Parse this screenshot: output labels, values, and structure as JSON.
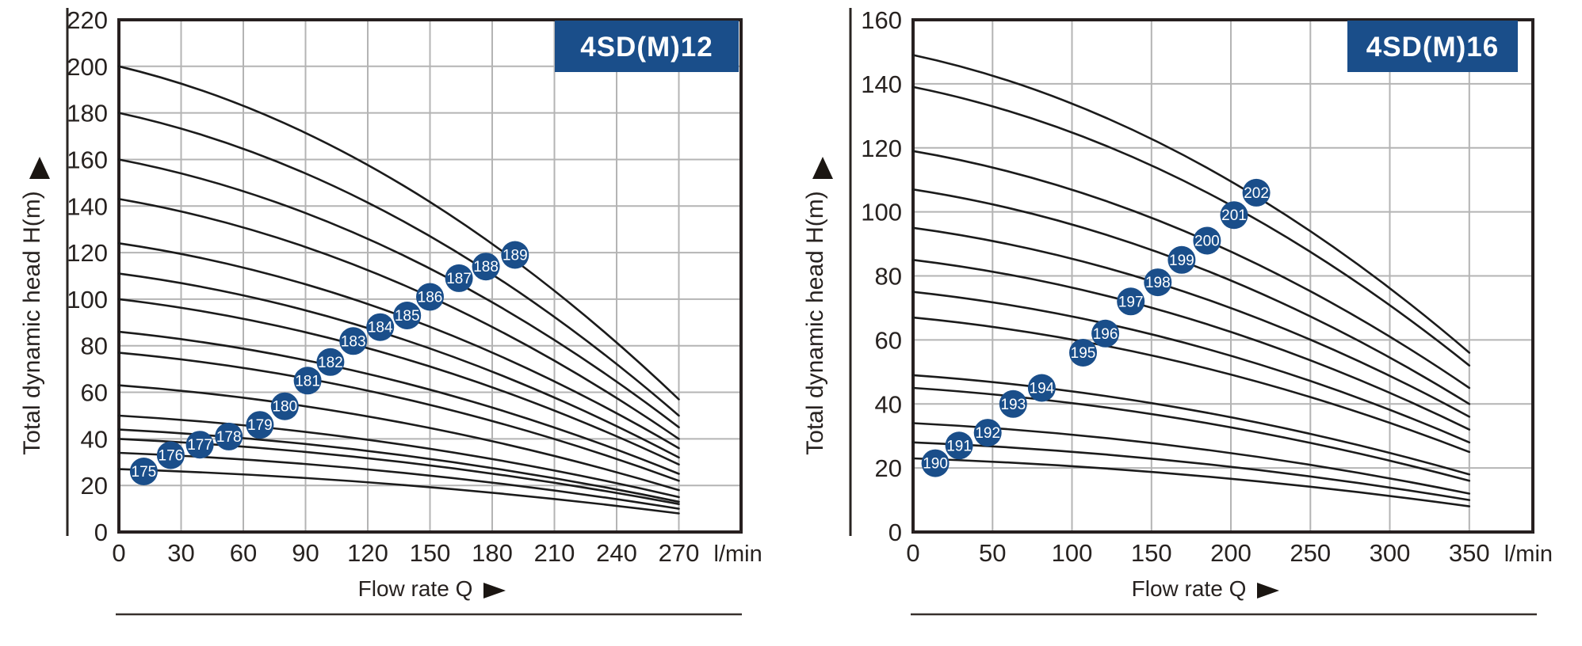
{
  "colors": {
    "accent": "#1a4e8a",
    "curve": "#1b1b1b",
    "grid": "#b4b4b4",
    "border": "#272020",
    "rule": "#2a2522",
    "marker_text": "#ffffff"
  },
  "chart_data": [
    {
      "type": "line",
      "title": "4SD(M)12",
      "ylabel": "Total dynamic head H(m)",
      "xlabel": "Flow rate Q",
      "x_unit": "l/min",
      "xlim": [
        0,
        300
      ],
      "ylim": [
        0,
        220
      ],
      "x_ticks": [
        0,
        30,
        60,
        90,
        120,
        150,
        180,
        210,
        240,
        270
      ],
      "y_ticks": [
        0,
        20,
        40,
        60,
        80,
        100,
        120,
        140,
        160,
        180,
        200,
        220
      ],
      "grid": true,
      "q_end": 270,
      "series": [
        {
          "name": "175",
          "h_at_q0": 27,
          "h_at_qend": 8
        },
        {
          "name": "176",
          "h_at_q0": 34,
          "h_at_qend": 10
        },
        {
          "name": "177",
          "h_at_q0": 40,
          "h_at_qend": 12
        },
        {
          "name": "178",
          "h_at_q0": 44,
          "h_at_qend": 13
        },
        {
          "name": "179",
          "h_at_q0": 50,
          "h_at_qend": 15
        },
        {
          "name": "180",
          "h_at_q0": 63,
          "h_at_qend": 18
        },
        {
          "name": "181",
          "h_at_q0": 77,
          "h_at_qend": 22
        },
        {
          "name": "182",
          "h_at_q0": 86,
          "h_at_qend": 25
        },
        {
          "name": "183",
          "h_at_q0": 100,
          "h_at_qend": 29
        },
        {
          "name": "184",
          "h_at_q0": 111,
          "h_at_qend": 32
        },
        {
          "name": "185",
          "h_at_q0": 124,
          "h_at_qend": 36
        },
        {
          "name": "186",
          "h_at_q0": 143,
          "h_at_qend": 40
        },
        {
          "name": "187",
          "h_at_q0": 160,
          "h_at_qend": 45
        },
        {
          "name": "188",
          "h_at_q0": 180,
          "h_at_qend": 50
        },
        {
          "name": "189",
          "h_at_q0": 200,
          "h_at_qend": 57
        }
      ],
      "duty_points": [
        {
          "label": "175",
          "q": 12,
          "h": 26
        },
        {
          "label": "176",
          "q": 25,
          "h": 33
        },
        {
          "label": "177",
          "q": 39,
          "h": 37.5
        },
        {
          "label": "178",
          "q": 53,
          "h": 41
        },
        {
          "label": "179",
          "q": 68,
          "h": 46
        },
        {
          "label": "180",
          "q": 80,
          "h": 54
        },
        {
          "label": "181",
          "q": 91,
          "h": 65
        },
        {
          "label": "182",
          "q": 102,
          "h": 73
        },
        {
          "label": "183",
          "q": 113,
          "h": 82
        },
        {
          "label": "184",
          "q": 126,
          "h": 88
        },
        {
          "label": "185",
          "q": 139,
          "h": 93
        },
        {
          "label": "186",
          "q": 150,
          "h": 101
        },
        {
          "label": "187",
          "q": 164,
          "h": 109
        },
        {
          "label": "188",
          "q": 177,
          "h": 114
        },
        {
          "label": "189",
          "q": 191,
          "h": 119
        }
      ]
    },
    {
      "type": "line",
      "title": "4SD(M)16",
      "ylabel": "Total dynamic head H(m)",
      "xlabel": "Flow rate Q",
      "x_unit": "l/min",
      "xlim": [
        0,
        390
      ],
      "ylim": [
        0,
        160
      ],
      "x_ticks": [
        0,
        50,
        100,
        150,
        200,
        250,
        300,
        350
      ],
      "y_ticks": [
        0,
        20,
        40,
        60,
        80,
        100,
        120,
        140,
        160
      ],
      "grid": true,
      "q_end": 350,
      "series": [
        {
          "name": "190",
          "h_at_q0": 23,
          "h_at_qend": 8
        },
        {
          "name": "191",
          "h_at_q0": 28,
          "h_at_qend": 10
        },
        {
          "name": "192",
          "h_at_q0": 34,
          "h_at_qend": 12
        },
        {
          "name": "193",
          "h_at_q0": 45,
          "h_at_qend": 16
        },
        {
          "name": "194",
          "h_at_q0": 49,
          "h_at_qend": 18
        },
        {
          "name": "195",
          "h_at_q0": 67,
          "h_at_qend": 25
        },
        {
          "name": "196",
          "h_at_q0": 75,
          "h_at_qend": 28
        },
        {
          "name": "197",
          "h_at_q0": 85,
          "h_at_qend": 32
        },
        {
          "name": "198",
          "h_at_q0": 95,
          "h_at_qend": 36
        },
        {
          "name": "199",
          "h_at_q0": 107,
          "h_at_qend": 40
        },
        {
          "name": "200",
          "h_at_q0": 119,
          "h_at_qend": 45
        },
        {
          "name": "201",
          "h_at_q0": 139,
          "h_at_qend": 52
        },
        {
          "name": "202",
          "h_at_q0": 149,
          "h_at_qend": 56
        }
      ],
      "duty_points": [
        {
          "label": "190",
          "q": 14,
          "h": 21.5
        },
        {
          "label": "191",
          "q": 29,
          "h": 27
        },
        {
          "label": "192",
          "q": 47,
          "h": 31
        },
        {
          "label": "193",
          "q": 63,
          "h": 40
        },
        {
          "label": "194",
          "q": 81,
          "h": 45
        },
        {
          "label": "195",
          "q": 107,
          "h": 56
        },
        {
          "label": "196",
          "q": 121,
          "h": 62
        },
        {
          "label": "197",
          "q": 137,
          "h": 72
        },
        {
          "label": "198",
          "q": 154,
          "h": 78
        },
        {
          "label": "199",
          "q": 169,
          "h": 85
        },
        {
          "label": "200",
          "q": 185,
          "h": 91
        },
        {
          "label": "201",
          "q": 202,
          "h": 99
        },
        {
          "label": "202",
          "q": 216,
          "h": 106
        }
      ]
    }
  ]
}
